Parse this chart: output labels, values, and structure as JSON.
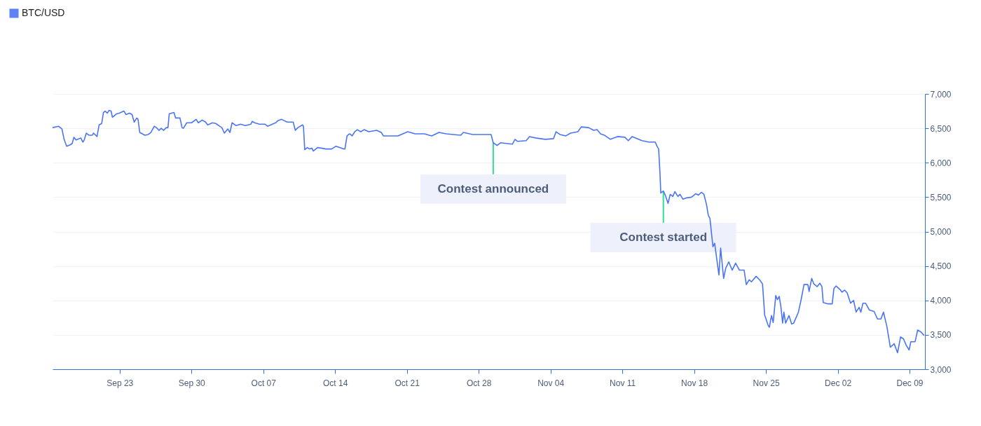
{
  "chart_data": {
    "type": "line",
    "legend": "top left",
    "grid": "y",
    "xlim": [
      "--09-16T11:00",
      "--12-10T12:00"
    ],
    "xticks": [
      {
        "value": "--09-23",
        "label": "Sep 23"
      },
      {
        "value": "--09-30",
        "label": "Sep 30"
      },
      {
        "value": "--10-07",
        "label": "Oct 07"
      },
      {
        "value": "--10-14",
        "label": "Oct 14"
      },
      {
        "value": "--10-21",
        "label": "Oct 21"
      },
      {
        "value": "--10-28",
        "label": "Oct 28"
      },
      {
        "value": "--11-04",
        "label": "Nov 04"
      },
      {
        "value": "--11-11",
        "label": "Nov 11"
      },
      {
        "value": "--11-18",
        "label": "Nov 18"
      },
      {
        "value": "--11-25",
        "label": "Nov 25"
      },
      {
        "value": "--12-02",
        "label": "Dec 02"
      },
      {
        "value": "--12-09",
        "label": "Dec 09"
      }
    ],
    "ylim": [
      3000,
      7000
    ],
    "yticks": [
      {
        "value": 3000,
        "label": "3,000"
      },
      {
        "value": 3500,
        "label": "3,500"
      },
      {
        "value": 4000,
        "label": "4,000"
      },
      {
        "value": 4500,
        "label": "4,500"
      },
      {
        "value": 5000,
        "label": "5,000"
      },
      {
        "value": 5500,
        "label": "5,500"
      },
      {
        "value": 6000,
        "label": "6,000"
      },
      {
        "value": 6500,
        "label": "6,500"
      },
      {
        "value": 7000,
        "label": "7,000"
      }
    ],
    "annotations": [
      {
        "text": "Contest announced",
        "x": "--10-29T10:00",
        "y": 6289
      },
      {
        "text": "Contest started",
        "x": "--11-15T00:00",
        "y": 5585
      }
    ],
    "series": [
      {
        "name": "BTC/USD",
        "color": "#4a74f5",
        "x": [
          "--09-16T11:00",
          "--09-17T01:00",
          "--09-17T09:00",
          "--09-17T14:00",
          "--09-17T20:00",
          "--09-18T04:00",
          "--09-18T09:00",
          "--09-18T13:00",
          "--09-18T18:00",
          "--09-19T05:00",
          "--09-19T10:00",
          "--09-19T13:00",
          "--09-19T18:00",
          "--09-20T00:00",
          "--09-20T08:00",
          "--09-20T11:00",
          "--09-20T19:00",
          "--09-21T00:00",
          "--09-21T06:00",
          "--09-21T10:00",
          "--09-21T14:00",
          "--09-21T19:00",
          "--09-21T23:00",
          "--09-22T04:00",
          "--09-22T07:00",
          "--09-22T17:00",
          "--09-22T23:00",
          "--09-23T10:00",
          "--09-23T15:00",
          "--09-23T23:00",
          "--09-24T05:00",
          "--09-24T10:00",
          "--09-24T16:00",
          "--09-24T19:00",
          "--09-24T23:00",
          "--09-25T05:00",
          "--09-25T11:00",
          "--09-25T19:00",
          "--09-26T01:00",
          "--09-26T09:00",
          "--09-26T14:00",
          "--09-26T20:00",
          "--09-27T01:00",
          "--09-27T07:00",
          "--09-27T13:00",
          "--09-27T17:00",
          "--09-27T20:00",
          "--09-28T07:00",
          "--09-28T11:00",
          "--09-28T21:00",
          "--09-29T02:00",
          "--09-29T05:00",
          "--09-29T13:00",
          "--09-30T00:00",
          "--09-30T11:00",
          "--09-30T16:00",
          "--10-01T01:00",
          "--10-01T09:00",
          "--10-01T14:00",
          "--10-02T01:00",
          "--10-02T09:00",
          "--10-02T18:00",
          "--10-02T23:00",
          "--10-03T05:00",
          "--10-03T13:00",
          "--10-03T18:00",
          "--10-03T23:00",
          "--10-04T08:00",
          "--10-04T19:00",
          "--10-05T06:00",
          "--10-05T19:00",
          "--10-05T22:00",
          "--10-06T04:00",
          "--10-06T15:00",
          "--10-07T04:00",
          "--10-07T10:00",
          "--10-07T21:00",
          "--10-08T05:00",
          "--10-08T10:00",
          "--10-08T19:00",
          "--10-09T08:00",
          "--10-09T22:00",
          "--10-10T03:00",
          "--10-10T09:00",
          "--10-10T20:00",
          "--10-10T22:00",
          "--10-11T01:00",
          "--10-11T07:00",
          "--10-11T12:00",
          "--10-11T18:00",
          "--10-11T21:00",
          "--10-12T07:00",
          "--10-12T18:00",
          "--10-13T02:00",
          "--10-13T16:00",
          "--10-14T02:00",
          "--10-14T20:00",
          "--10-14T23:00",
          "--10-15T04:00",
          "--10-15T10:00",
          "--10-15T16:00",
          "--10-15T22:00",
          "--10-16T04:00",
          "--10-16T12:00",
          "--10-16T20:00",
          "--10-17T07:00",
          "--10-18T01:00",
          "--10-18T12:00",
          "--10-18T17:00",
          "--10-20T03:00",
          "--10-21T02:00",
          "--10-21T19:00",
          "--10-22T17:00",
          "--10-23T10:00",
          "--10-24T03:00",
          "--10-24T20:00",
          "--10-26T06:00",
          "--10-26T12:00",
          "--10-27T10:00",
          "--10-28T20:00",
          "--10-29T05:00",
          "--10-29T10:00",
          "--10-29T19:00",
          "--10-30T03:00",
          "--10-30T17:00",
          "--10-31T07:00",
          "--10-31T13:00",
          "--10-31T19:00",
          "--11-01T15:00",
          "--11-01T23:00",
          "--11-02T13:00",
          "--11-03T12:00",
          "--11-04T07:00",
          "--11-04T13:00",
          "--11-04T22:00",
          "--11-05T12:00",
          "--11-05T23:00",
          "--11-06T16:00",
          "--11-07T00:00",
          "--11-07T17:00",
          "--11-08T05:00",
          "--11-08T13:00",
          "--11-08T21:00",
          "--11-09T06:00",
          "--11-09T20:00",
          "--11-10T13:00",
          "--11-11T06:00",
          "--11-11T14:00",
          "--11-11T23:00",
          "--11-12T22:00",
          "--11-13T14:00",
          "--11-14T05:00",
          "--11-14T10:00",
          "--11-14T13:00",
          "--11-14T16:00",
          "--11-14T18:00",
          "--11-15T00:00",
          "--11-15T05:00",
          "--11-15T11:00",
          "--11-15T16:00",
          "--11-15T22:00",
          "--11-16T03:00",
          "--11-16T10:00",
          "--11-16T15:00",
          "--11-16T22:00",
          "--11-17T07:00",
          "--11-17T18:00",
          "--11-18T04:00",
          "--11-18T10:00",
          "--11-18T17:00",
          "--11-18T23:00",
          "--11-19T05:00",
          "--11-19T09:00",
          "--11-19T13:00",
          "--11-19T20:00",
          "--11-20T00:00",
          "--11-20T10:00",
          "--11-20T14:00",
          "--11-20T21:00",
          "--11-21T02:00",
          "--11-21T09:00",
          "--11-21T17:00",
          "--11-22T01:00",
          "--11-22T10:00",
          "--11-22T21:00",
          "--11-23T02:00",
          "--11-23T09:00",
          "--11-23T14:00",
          "--11-24T01:00",
          "--11-24T09:00",
          "--11-24T16:00",
          "--11-24T21:00",
          "--11-25T05:00",
          "--11-25T08:00",
          "--11-25T13:00",
          "--11-25T17:00",
          "--11-25T23:00",
          "--11-26T03:00",
          "--11-26T07:00",
          "--11-26T11:00",
          "--11-26T15:00",
          "--11-26T18:00",
          "--11-26T22:00",
          "--11-27T06:00",
          "--11-27T12:00",
          "--11-27T17:00",
          "--11-28T04:00",
          "--11-28T10:00",
          "--11-28T17:00",
          "--11-29T02:00",
          "--11-29T05:00",
          "--11-29T11:00",
          "--11-29T16:00",
          "--11-30T00:00",
          "--11-30T06:00",
          "--11-30T11:00",
          "--11-30T14:00",
          "--12-01T01:00",
          "--12-01T11:00",
          "--12-01T15:00",
          "--12-01T20:00",
          "--12-02T05:00",
          "--12-02T10:00",
          "--12-02T16:00",
          "--12-02T22:00",
          "--12-03T06:00",
          "--12-03T13:00",
          "--12-03T19:00",
          "--12-04T02:00",
          "--12-04T06:00",
          "--12-04T11:00",
          "--12-04T17:00",
          "--12-05T02:00",
          "--12-05T13:00",
          "--12-05T21:00",
          "--12-06T05:00",
          "--12-06T11:00",
          "--12-06T19:00",
          "--12-07T03:00",
          "--12-07T12:00",
          "--12-07T20:00",
          "--12-08T03:00",
          "--12-08T10:00",
          "--12-08T16:00",
          "--12-08T23:00",
          "--12-09T03:00",
          "--12-09T13:00",
          "--12-09T19:00",
          "--12-10T03:00",
          "--12-10T10:00"
        ],
        "values": [
          6510,
          6530,
          6490,
          6340,
          6240,
          6260,
          6280,
          6370,
          6330,
          6360,
          6300,
          6330,
          6430,
          6400,
          6400,
          6430,
          6380,
          6550,
          6570,
          6730,
          6750,
          6720,
          6760,
          6750,
          6660,
          6710,
          6720,
          6750,
          6700,
          6720,
          6700,
          6590,
          6650,
          6630,
          6440,
          6420,
          6400,
          6410,
          6440,
          6530,
          6510,
          6470,
          6500,
          6470,
          6510,
          6510,
          6710,
          6730,
          6650,
          6650,
          6510,
          6500,
          6580,
          6580,
          6630,
          6580,
          6620,
          6590,
          6550,
          6580,
          6570,
          6530,
          6510,
          6430,
          6490,
          6440,
          6580,
          6540,
          6560,
          6540,
          6560,
          6600,
          6580,
          6560,
          6560,
          6530,
          6560,
          6580,
          6610,
          6630,
          6590,
          6590,
          6470,
          6510,
          6550,
          6530,
          6190,
          6220,
          6200,
          6210,
          6170,
          6220,
          6210,
          6200,
          6200,
          6240,
          6200,
          6200,
          6390,
          6420,
          6390,
          6450,
          6480,
          6450,
          6480,
          6450,
          6470,
          6440,
          6390,
          6390,
          6450,
          6420,
          6420,
          6390,
          6440,
          6420,
          6400,
          6440,
          6410,
          6410,
          6410,
          6290,
          6250,
          6290,
          6280,
          6270,
          6340,
          6310,
          6320,
          6380,
          6360,
          6340,
          6350,
          6450,
          6410,
          6390,
          6430,
          6450,
          6520,
          6510,
          6470,
          6480,
          6420,
          6400,
          6340,
          6380,
          6370,
          6320,
          6380,
          6320,
          6300,
          6300,
          6230,
          6200,
          5860,
          5560,
          5590,
          5520,
          5410,
          5540,
          5510,
          5580,
          5510,
          5540,
          5470,
          5490,
          5500,
          5550,
          5530,
          5570,
          5540,
          5390,
          5240,
          5190,
          4780,
          4830,
          4370,
          4760,
          4320,
          4470,
          4560,
          4440,
          4540,
          4440,
          4440,
          4230,
          4300,
          4270,
          4350,
          4300,
          4240,
          3790,
          3640,
          3610,
          3780,
          3680,
          4070,
          4010,
          4060,
          3910,
          3670,
          3830,
          3670,
          3780,
          3660,
          3670,
          3830,
          4000,
          4230,
          4230,
          4130,
          4320,
          4240,
          4200,
          4250,
          4200,
          3970,
          3950,
          3950,
          4170,
          4210,
          4160,
          4120,
          4150,
          4110,
          3960,
          4000,
          3830,
          3900,
          3830,
          3960,
          3960,
          3860,
          3840,
          3730,
          3730,
          3830,
          3620,
          3320,
          3370,
          3240,
          3470,
          3440,
          3350,
          3280,
          3400,
          3400,
          3570,
          3540,
          3490
        ]
      }
    ]
  }
}
